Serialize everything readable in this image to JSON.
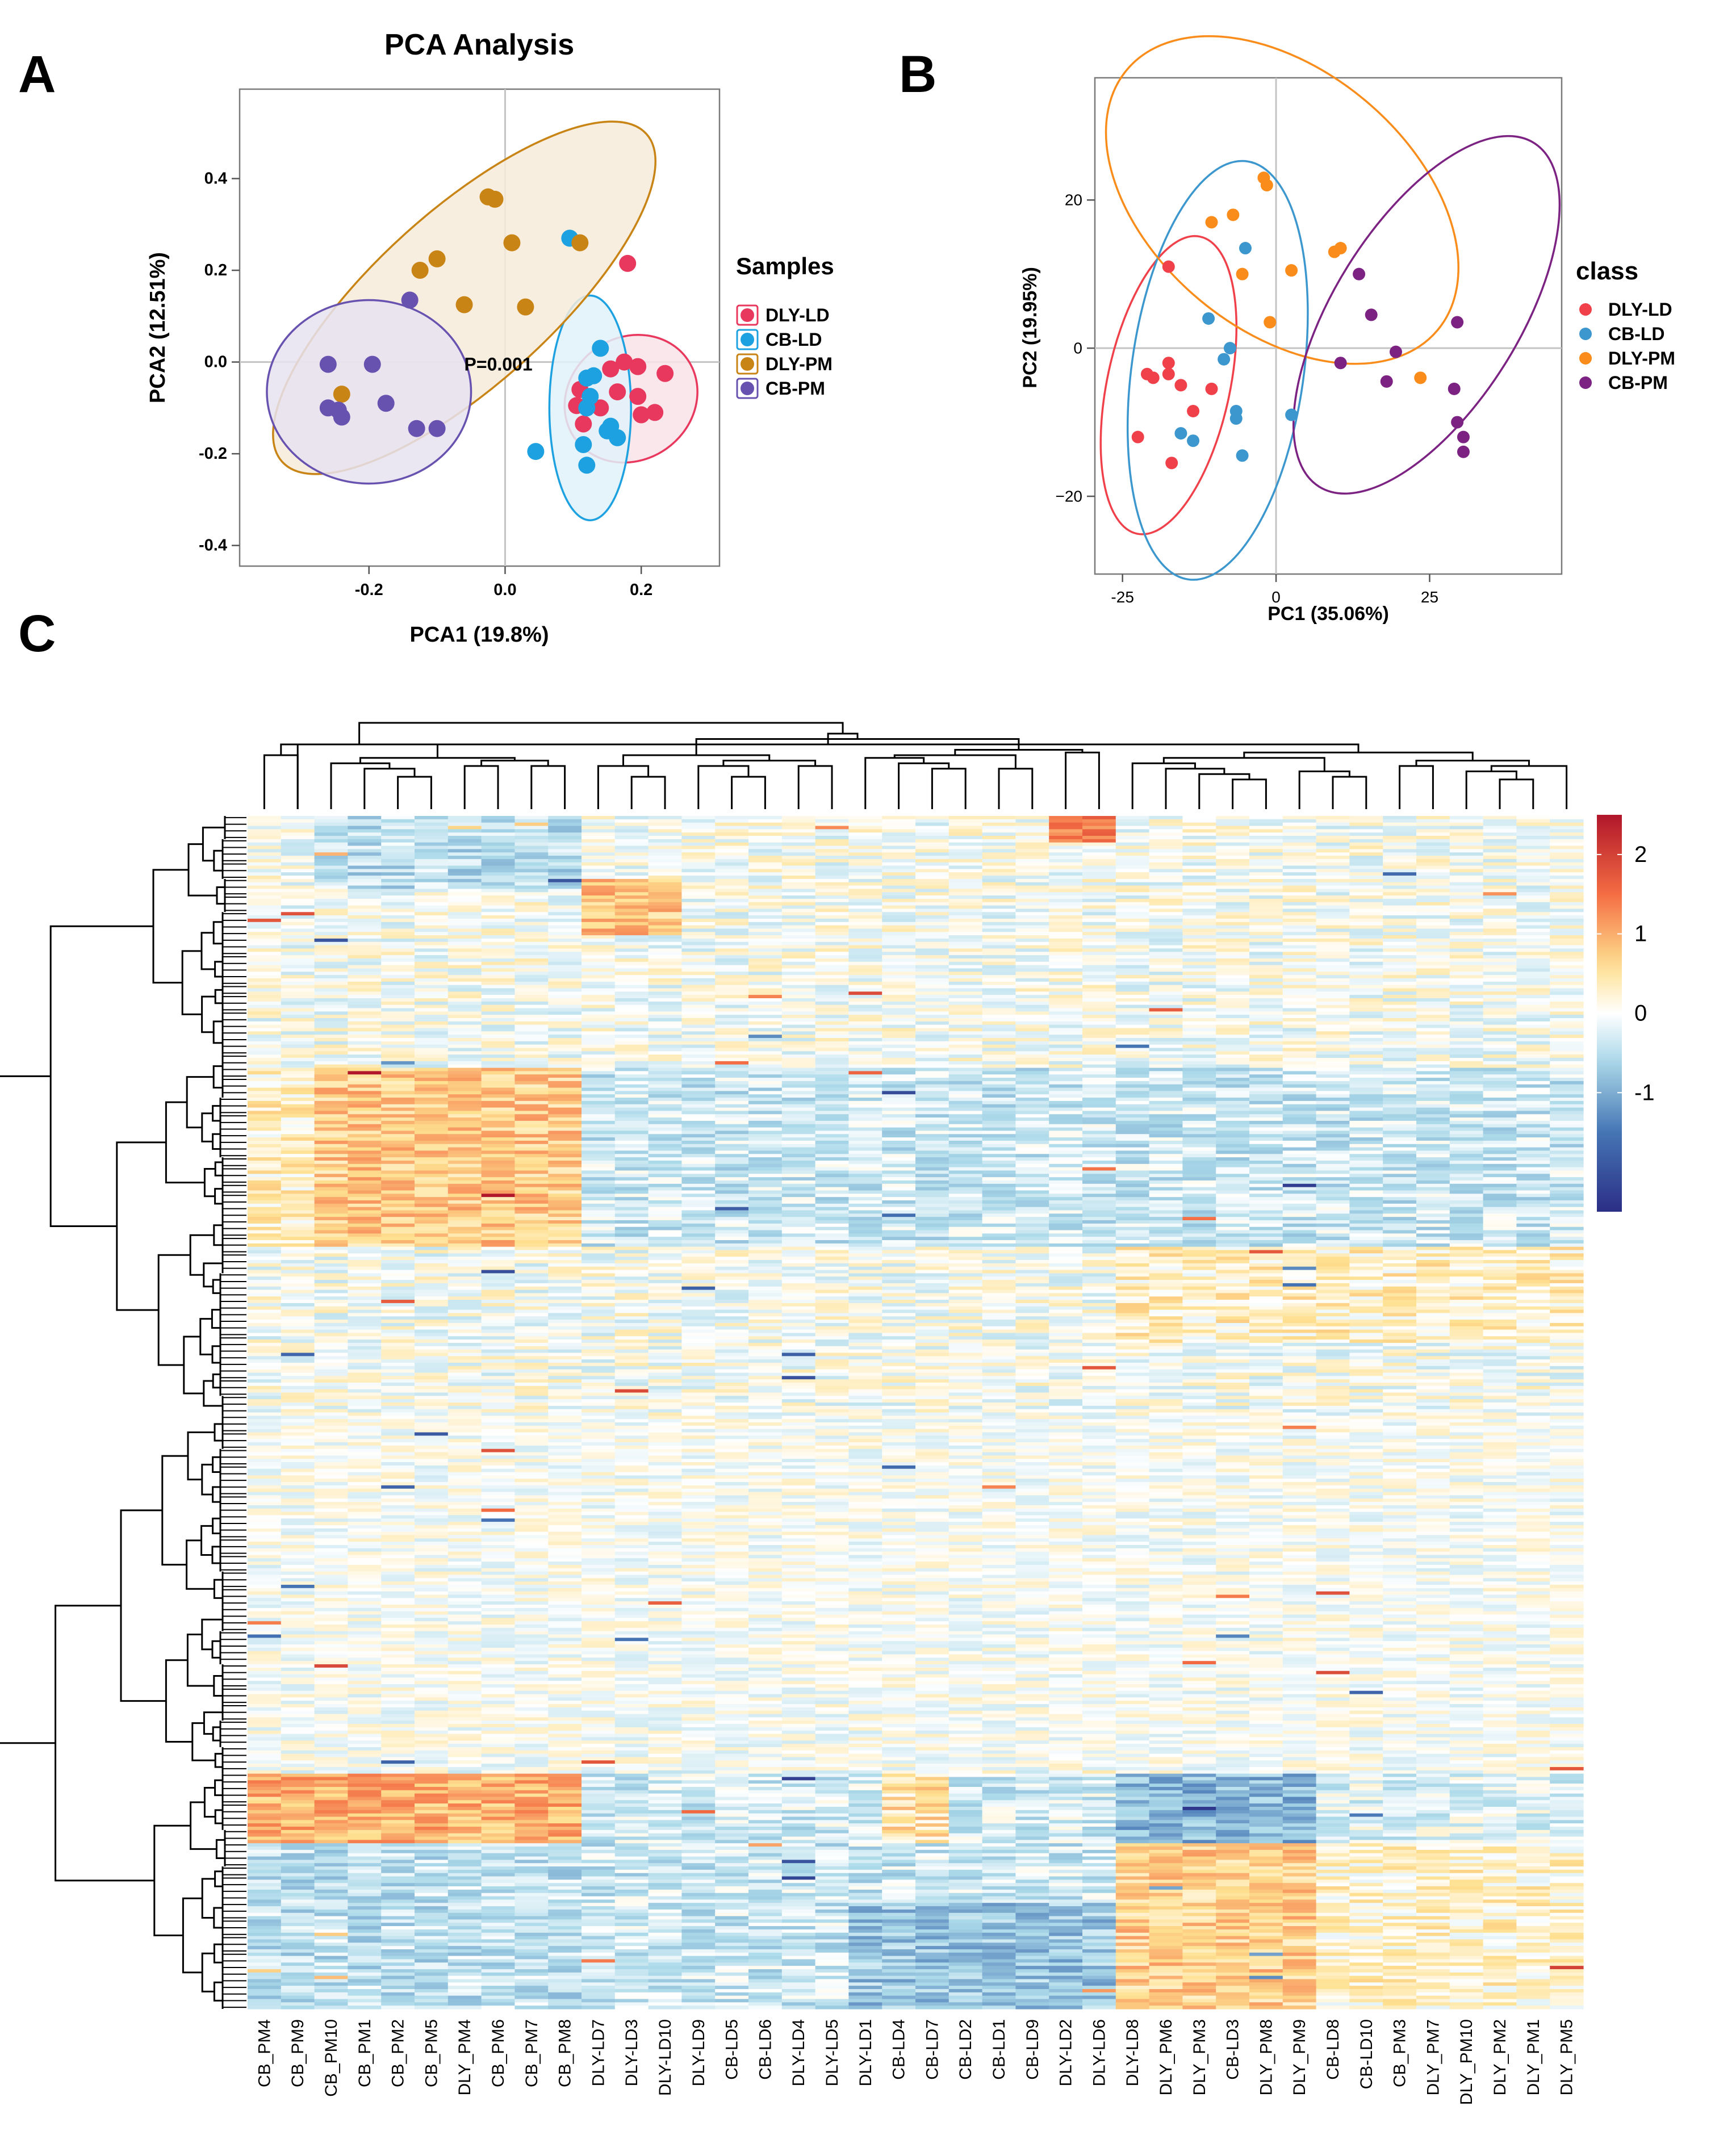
{
  "panels": {
    "A": {
      "letter": "A"
    },
    "B": {
      "letter": "B"
    },
    "C": {
      "letter": "C"
    }
  },
  "chart_data": [
    {
      "id": "A",
      "type": "scatter",
      "title": "PCA Analysis",
      "xlabel": "PCA1 (19.8%)",
      "ylabel": "PCA2 (12.51%)",
      "xlim": [
        -0.39,
        0.315
      ],
      "ylim": [
        -0.445,
        0.595
      ],
      "xticks": [
        -0.2,
        0.0,
        0.2
      ],
      "xtick_labels": [
        "-0.2",
        "0.0",
        "0.2"
      ],
      "yticks": [
        -0.4,
        -0.2,
        0.0,
        0.2,
        0.4
      ],
      "ytick_labels": [
        "-0.4",
        "-0.2",
        "0.0",
        "0.2",
        "0.4"
      ],
      "reference_lines": {
        "x": 0,
        "y": 0
      },
      "annotation": "P=0.001",
      "legend": {
        "title": "Samples",
        "position": "right"
      },
      "series": [
        {
          "name": "DLY-LD",
          "color": "#E8385E",
          "ellipse_fill": "#F9E3E8",
          "ellipse": {
            "cx": 0.185,
            "cy": -0.08,
            "rx": 0.09,
            "ry": 0.15,
            "angle": 55
          },
          "points": [
            [
              0.18,
              0.215
            ],
            [
              0.175,
              0.0
            ],
            [
              0.155,
              -0.015
            ],
            [
              0.195,
              -0.01
            ],
            [
              0.235,
              -0.025
            ],
            [
              0.11,
              -0.06
            ],
            [
              0.165,
              -0.065
            ],
            [
              0.195,
              -0.075
            ],
            [
              0.105,
              -0.095
            ],
            [
              0.14,
              -0.1
            ],
            [
              0.2,
              -0.115
            ],
            [
              0.22,
              -0.11
            ],
            [
              0.115,
              -0.135
            ]
          ]
        },
        {
          "name": "CB-LD",
          "color": "#1DA1E0",
          "ellipse_fill": "#E0F1FA",
          "ellipse": {
            "cx": 0.125,
            "cy": -0.1,
            "rx": 0.06,
            "ry": 0.245,
            "angle": 0
          },
          "points": [
            [
              0.095,
              0.27
            ],
            [
              0.14,
              0.03
            ],
            [
              0.13,
              -0.03
            ],
            [
              0.12,
              -0.035
            ],
            [
              0.125,
              -0.075
            ],
            [
              0.12,
              -0.1
            ],
            [
              0.155,
              -0.14
            ],
            [
              0.15,
              -0.15
            ],
            [
              0.165,
              -0.165
            ],
            [
              0.115,
              -0.18
            ],
            [
              0.045,
              -0.195
            ],
            [
              0.12,
              -0.225
            ]
          ]
        },
        {
          "name": "DLY-PM",
          "color": "#C98416",
          "ellipse_fill": "#F6EBDA",
          "ellipse": {
            "cx": -0.06,
            "cy": 0.14,
            "rx": 0.36,
            "ry": 0.19,
            "angle": -42
          },
          "points": [
            [
              -0.025,
              0.36
            ],
            [
              -0.015,
              0.355
            ],
            [
              0.01,
              0.26
            ],
            [
              0.11,
              0.26
            ],
            [
              -0.125,
              0.2
            ],
            [
              -0.1,
              0.225
            ],
            [
              -0.06,
              0.125
            ],
            [
              0.03,
              0.12
            ],
            [
              -0.24,
              -0.07
            ]
          ]
        },
        {
          "name": "CB-PM",
          "color": "#6852B0",
          "ellipse_fill": "#E6E2F0",
          "ellipse": {
            "cx": -0.2,
            "cy": -0.065,
            "rx": 0.15,
            "ry": 0.2,
            "angle": 0
          },
          "points": [
            [
              -0.14,
              0.135
            ],
            [
              -0.26,
              -0.005
            ],
            [
              -0.195,
              -0.005
            ],
            [
              -0.245,
              -0.105
            ],
            [
              -0.24,
              -0.12
            ],
            [
              -0.26,
              -0.1
            ],
            [
              -0.175,
              -0.09
            ],
            [
              -0.13,
              -0.145
            ],
            [
              -0.1,
              -0.145
            ]
          ]
        }
      ]
    },
    {
      "id": "B",
      "type": "scatter",
      "xlabel": "PC1 (35.06%)",
      "ylabel": "PC2 (19.95%)",
      "xlim": [
        -29.5,
        46.5
      ],
      "ylim": [
        -30.5,
        36.5
      ],
      "xticks": [
        -25,
        0,
        25
      ],
      "xtick_labels": [
        "-25",
        "0",
        "25"
      ],
      "yticks": [
        -20,
        0,
        20
      ],
      "ytick_labels": [
        "−20",
        "0",
        "20"
      ],
      "reference_lines": {
        "x": 0,
        "y": 0
      },
      "legend": {
        "title": "class",
        "position": "right"
      },
      "series": [
        {
          "name": "DLY-LD",
          "color": "#F0414B",
          "ellipse": {
            "cx": -17.5,
            "cy": -5,
            "rx": 10,
            "ry": 20.5,
            "angle": 12
          },
          "points": [
            [
              -17.5,
              11
            ],
            [
              -21,
              -3.5
            ],
            [
              -20,
              -4
            ],
            [
              -17.5,
              -2
            ],
            [
              -17.5,
              -3.5
            ],
            [
              -15.5,
              -5
            ],
            [
              -10.5,
              -5.5
            ],
            [
              -13.5,
              -8.5
            ],
            [
              -22.5,
              -12
            ],
            [
              -17,
              -15.5
            ]
          ]
        },
        {
          "name": "CB-LD",
          "color": "#3C97CE",
          "ellipse": {
            "cx": -9.5,
            "cy": -3,
            "rx": 14,
            "ry": 28.5,
            "angle": 8
          },
          "points": [
            [
              -5,
              13.5
            ],
            [
              -11,
              4
            ],
            [
              -7.5,
              0
            ],
            [
              -8.5,
              -1.5
            ],
            [
              -6.5,
              -8.5
            ],
            [
              -6.5,
              -9.5
            ],
            [
              -15.5,
              -11.5
            ],
            [
              -13.5,
              -12.5
            ],
            [
              -5.5,
              -14.5
            ],
            [
              2.5,
              -9
            ]
          ]
        },
        {
          "name": "DLY-PM",
          "color": "#F98C1A",
          "ellipse": {
            "cx": 1,
            "cy": 20,
            "rx": 33,
            "ry": 17.5,
            "angle": 40
          },
          "points": [
            [
              -2,
              23
            ],
            [
              -1.5,
              22
            ],
            [
              -7,
              18
            ],
            [
              -10.5,
              17
            ],
            [
              -5.5,
              10
            ],
            [
              2.5,
              10.5
            ],
            [
              -1,
              3.5
            ],
            [
              10.5,
              13.5
            ],
            [
              9.5,
              13
            ],
            [
              23.5,
              -4
            ]
          ]
        },
        {
          "name": "CB-PM",
          "color": "#7B2283",
          "ellipse": {
            "cx": 24.5,
            "cy": 4.5,
            "rx": 33,
            "ry": 12.5,
            "angle": -58
          },
          "points": [
            [
              13.5,
              10
            ],
            [
              15.5,
              4.5
            ],
            [
              29.5,
              3.5
            ],
            [
              19.5,
              -0.5
            ],
            [
              10.5,
              -2
            ],
            [
              18,
              -4.5
            ],
            [
              29,
              -5.5
            ],
            [
              29.5,
              -10
            ],
            [
              30.5,
              -12
            ],
            [
              30.5,
              -14
            ]
          ]
        }
      ]
    },
    {
      "id": "C",
      "type": "heatmap",
      "columns": [
        "CB_PM4",
        "CB_PM9",
        "CB_PM10",
        "CB_PM1",
        "CB_PM2",
        "CB_PM5",
        "DLY_PM4",
        "CB_PM6",
        "CB_PM7",
        "CB_PM8",
        "DLY-LD7",
        "DLY-LD3",
        "DLY-LD10",
        "DLY-LD9",
        "CB-LD5",
        "CB-LD6",
        "DLY-LD4",
        "DLY-LD5",
        "DLY-LD1",
        "CB-LD4",
        "CB-LD7",
        "CB-LD2",
        "CB-LD1",
        "CB-LD9",
        "DLY-LD2",
        "DLY-LD6",
        "DLY-LD8",
        "DLY_PM6",
        "DLY_PM3",
        "CB-LD3",
        "DLY_PM8",
        "DLY_PM9",
        "CB-LD8",
        "CB-LD10",
        "CB_PM3",
        "DLY_PM7",
        "DLY_PM10",
        "DLY_PM2",
        "DLY_PM1",
        "DLY_PM5"
      ],
      "n_rows": 360,
      "value_range": [
        -2.5,
        2.5
      ],
      "color_scale": {
        "low": "#2B2E86",
        "mid": "#FFFFFF",
        "high": "#B1162A"
      },
      "colorbar_ticks": [
        2,
        1,
        0,
        -1
      ],
      "colorbar_tick_labels": [
        "2",
        "1",
        "0",
        "-1"
      ],
      "blocks_note": "values estimated; heatmap rendered as a procedural approximation of the depicted row/column patterns"
    }
  ]
}
